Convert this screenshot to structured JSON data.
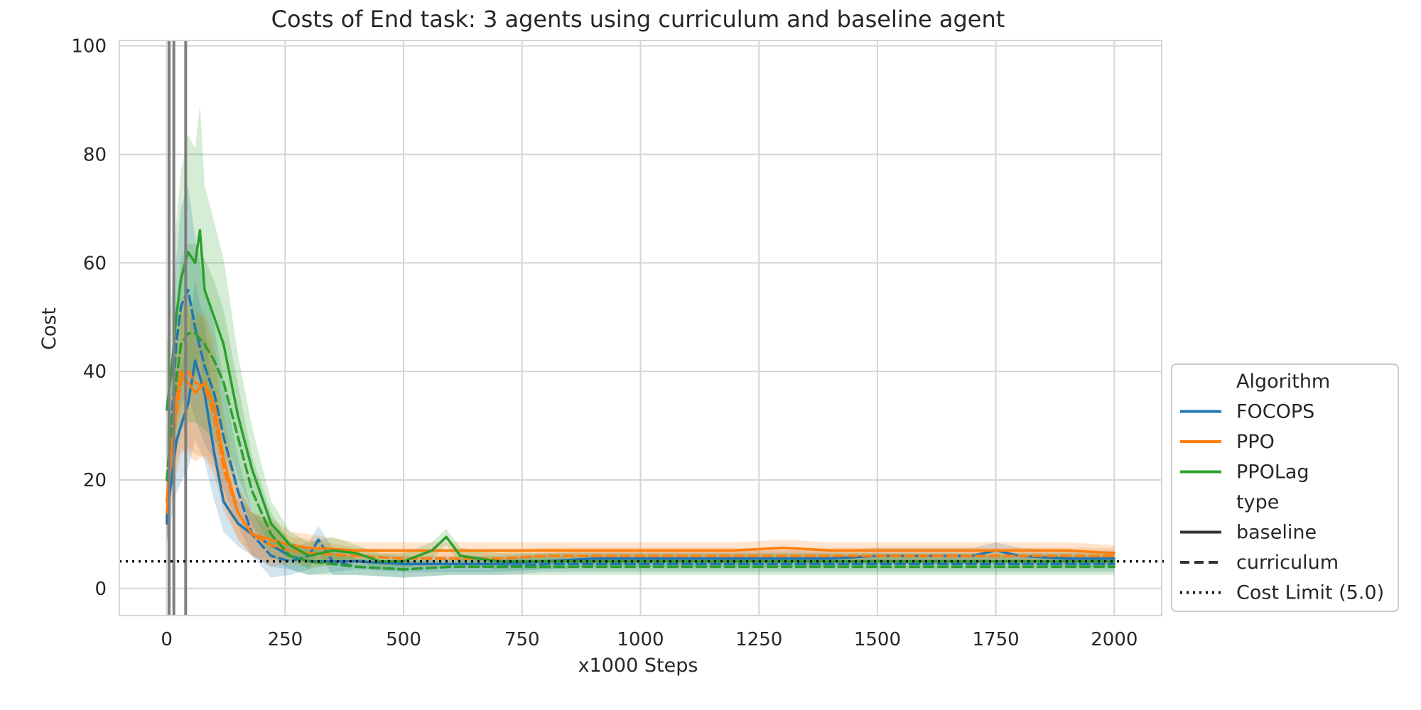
{
  "chart_data": {
    "type": "line",
    "title": "Costs of End task: 3 agents using curriculum and baseline agent",
    "xlabel": "x1000 Steps",
    "ylabel": "Cost",
    "xlim": [
      -100,
      2100
    ],
    "ylim": [
      -5,
      101
    ],
    "x_ticks": [
      0,
      250,
      500,
      750,
      1000,
      1250,
      1500,
      1750,
      2000
    ],
    "y_ticks": [
      0,
      20,
      40,
      60,
      80,
      100
    ],
    "grid": true,
    "legend_position": "lower-right, outside plot",
    "legend": {
      "hue_title": "Algorithm",
      "style_title": "type",
      "hue_entries": [
        {
          "name": "FOCOPS",
          "color": "#1f77b4"
        },
        {
          "name": "PPO",
          "color": "#ff7f0e"
        },
        {
          "name": "PPOLag",
          "color": "#2ca02c"
        }
      ],
      "style_entries": [
        {
          "name": "baseline",
          "dash": "solid"
        },
        {
          "name": "curriculum",
          "dash": "dashed"
        },
        {
          "name": "Cost Limit (5.0)",
          "dash": "dotted"
        }
      ]
    },
    "cost_limit": 5.0,
    "curriculum_markers_x": [
      5,
      15,
      40
    ],
    "series": [
      {
        "name": "FOCOPS",
        "type": "baseline",
        "color": "#1f77b4",
        "x": [
          0,
          10,
          20,
          30,
          45,
          60,
          80,
          100,
          120,
          150,
          180,
          220,
          260,
          300,
          400,
          500,
          600,
          700,
          800,
          900,
          1000,
          1100,
          1200,
          1300,
          1400,
          1500,
          1600,
          1700,
          1750,
          1800,
          1900,
          2000
        ],
        "y": [
          13,
          20,
          27,
          30,
          34,
          42,
          36,
          25,
          16,
          12,
          10,
          8,
          6,
          5,
          5,
          4.5,
          4.5,
          4.5,
          5,
          5.5,
          5.5,
          5.5,
          5.5,
          5.5,
          5.5,
          6,
          6,
          6,
          7,
          6,
          5.5,
          5.5
        ]
      },
      {
        "name": "FOCOPS",
        "type": "curriculum",
        "color": "#1f77b4",
        "x": [
          0,
          10,
          20,
          30,
          45,
          60,
          80,
          100,
          120,
          150,
          180,
          220,
          260,
          300,
          320,
          350,
          400,
          500,
          600,
          700,
          800,
          900,
          1000,
          1100,
          1200,
          1300,
          1400,
          1500,
          1600,
          1700,
          1800,
          1900,
          2000
        ],
        "y": [
          12,
          30,
          45,
          52,
          55,
          48,
          41,
          36,
          28,
          18,
          10,
          6,
          5,
          6,
          9,
          5,
          4,
          3.5,
          4,
          4,
          4.5,
          4.5,
          4.5,
          4.5,
          4.5,
          4.5,
          4.5,
          4.5,
          4.5,
          4.5,
          4.5,
          4.5,
          4.5
        ]
      },
      {
        "name": "PPO",
        "type": "baseline",
        "color": "#ff7f0e",
        "x": [
          0,
          10,
          20,
          30,
          45,
          60,
          80,
          100,
          120,
          150,
          180,
          220,
          260,
          300,
          400,
          500,
          600,
          700,
          800,
          900,
          1000,
          1100,
          1200,
          1300,
          1400,
          1500,
          1600,
          1700,
          1800,
          1900,
          2000
        ],
        "y": [
          16,
          28,
          35,
          40,
          38,
          36,
          38,
          34,
          24,
          14,
          10,
          9,
          8,
          7.5,
          7,
          7,
          7,
          7,
          7,
          7,
          7,
          7,
          7,
          7.5,
          7,
          7,
          7,
          7,
          7,
          7,
          6.5
        ]
      },
      {
        "name": "PPO",
        "type": "curriculum",
        "color": "#ff7f0e",
        "x": [
          0,
          10,
          20,
          30,
          45,
          60,
          80,
          100,
          120,
          150,
          180,
          220,
          260,
          300,
          400,
          500,
          600,
          700,
          800,
          900,
          1000,
          1100,
          1200,
          1300,
          1400,
          1500,
          1600,
          1700,
          1800,
          1900,
          2000
        ],
        "y": [
          14,
          25,
          32,
          38,
          40,
          38,
          37,
          32,
          22,
          14,
          10,
          8,
          7,
          6.5,
          6,
          5.5,
          5.5,
          5.5,
          6,
          6,
          6,
          6,
          6,
          6,
          6,
          6,
          6,
          6,
          6,
          6,
          6
        ]
      },
      {
        "name": "PPOLag",
        "type": "baseline",
        "color": "#2ca02c",
        "x": [
          0,
          10,
          20,
          30,
          45,
          60,
          70,
          80,
          100,
          120,
          150,
          180,
          220,
          260,
          300,
          350,
          400,
          450,
          500,
          560,
          590,
          620,
          700,
          800,
          900,
          1000,
          1100,
          1200,
          1300,
          1400,
          1500,
          1600,
          1700,
          1800,
          1900,
          2000
        ],
        "y": [
          33,
          40,
          50,
          57,
          62,
          60,
          66,
          55,
          50,
          45,
          32,
          22,
          12,
          8,
          6,
          7,
          6.5,
          5,
          5,
          7,
          9.5,
          6,
          5,
          5,
          5,
          5,
          5,
          5,
          5,
          5,
          5,
          5,
          5,
          5,
          5,
          5
        ]
      },
      {
        "name": "PPOLag",
        "type": "curriculum",
        "color": "#2ca02c",
        "x": [
          0,
          10,
          20,
          30,
          45,
          60,
          80,
          100,
          120,
          150,
          180,
          220,
          260,
          300,
          400,
          500,
          600,
          700,
          800,
          900,
          1000,
          1100,
          1200,
          1300,
          1400,
          1500,
          1600,
          1700,
          1800,
          1900,
          2000
        ],
        "y": [
          20,
          30,
          38,
          45,
          47,
          47,
          45,
          42,
          38,
          28,
          18,
          10,
          6,
          5,
          4,
          3.5,
          4,
          4,
          4,
          4,
          4,
          4,
          4,
          4,
          4,
          4,
          4,
          4,
          4,
          4,
          4
        ]
      }
    ]
  }
}
